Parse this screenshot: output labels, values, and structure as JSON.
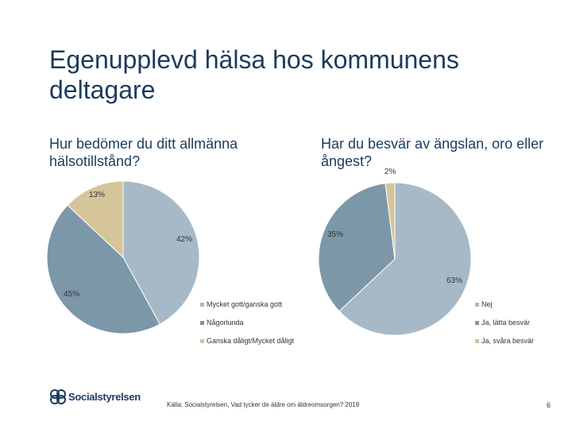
{
  "slide": {
    "title": "Egenupplevd hälsa hos kommunens deltagare",
    "source": "Källa: Socialstyrelsen, Vad tycker de äldre om äldreomsorgen? 2019",
    "page_number": "6",
    "logo_text": "Socialstyrelsen"
  },
  "chart_data": [
    {
      "type": "pie",
      "title": "Hur bedömer du ditt allmänna hälsotillstånd?",
      "categories": [
        "Mycket gott/ganska gott",
        "Någorlunda",
        "Ganska dåligt/Mycket dåligt"
      ],
      "values": [
        42,
        45,
        13
      ],
      "labels": [
        "42%",
        "45%",
        "13%"
      ],
      "colors": [
        "#a7b9c6",
        "#7c97a8",
        "#d6c49b"
      ],
      "legend": "bottom-right"
    },
    {
      "type": "pie",
      "title": "Har du besvär av ängslan, oro eller ångest?",
      "categories": [
        "Nej",
        "Ja, lätta besvär",
        "Ja, svåra besvär"
      ],
      "values": [
        63,
        35,
        2
      ],
      "labels": [
        "63%",
        "35%",
        "2%"
      ],
      "colors": [
        "#a7b9c6",
        "#7c97a8",
        "#d6c49b"
      ],
      "legend": "bottom-right"
    }
  ]
}
